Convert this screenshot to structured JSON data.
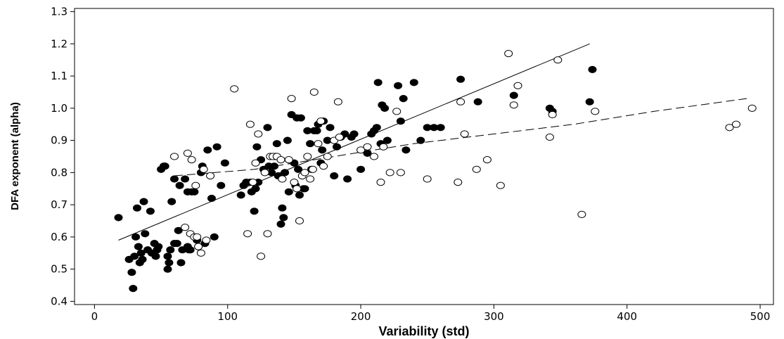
{
  "chart_data": {
    "type": "scatter",
    "title": "",
    "xlabel": "Variability (std)",
    "ylabel": "DFA exponent (alpha)",
    "xlim": [
      -15,
      510
    ],
    "ylim": [
      0.39,
      1.31
    ],
    "xticks": [
      0,
      100,
      200,
      300,
      400,
      500
    ],
    "yticks": [
      0.4,
      0.5,
      0.6,
      0.7,
      0.8,
      0.9,
      1.0,
      1.1,
      1.2,
      1.3
    ],
    "ytick_labels": [
      "0.4",
      "0.5",
      "0.6",
      "0.7",
      "0.8",
      "0.9",
      "1.0",
      "1.1",
      "1.2",
      "1.3"
    ],
    "grid": false,
    "legend": "none",
    "series": [
      {
        "marker": "filled-circle",
        "color": "#000000",
        "x": [
          18,
          26,
          28,
          29,
          30,
          31,
          32,
          33,
          34,
          35,
          36,
          37,
          38,
          40,
          42,
          43,
          45,
          46,
          47,
          48,
          50,
          52,
          53,
          55,
          55,
          56,
          57,
          58,
          60,
          60,
          62,
          63,
          64,
          65,
          66,
          68,
          70,
          70,
          71,
          72,
          73,
          75,
          77,
          78,
          80,
          81,
          83,
          85,
          88,
          90,
          92,
          95,
          98,
          110,
          112,
          114,
          117,
          118,
          120,
          121,
          122,
          123,
          125,
          127,
          130,
          131,
          133,
          135,
          136,
          137,
          138,
          140,
          141,
          142,
          143,
          145,
          146,
          148,
          150,
          151,
          152,
          153,
          154,
          155,
          157,
          158,
          160,
          162,
          163,
          165,
          167,
          168,
          170,
          171,
          172,
          175,
          177,
          180,
          182,
          185,
          188,
          190,
          193,
          195,
          200,
          205,
          208,
          210,
          212,
          213,
          215,
          216,
          218,
          220,
          228,
          230,
          232,
          234,
          240,
          245,
          250,
          255,
          260,
          275,
          288,
          315,
          342,
          344,
          372,
          374
        ],
        "y": [
          0.66,
          0.53,
          0.49,
          0.44,
          0.54,
          0.6,
          0.69,
          0.57,
          0.52,
          0.55,
          0.53,
          0.71,
          0.61,
          0.56,
          0.68,
          0.55,
          0.58,
          0.54,
          0.56,
          0.57,
          0.81,
          0.82,
          0.82,
          0.5,
          0.54,
          0.52,
          0.56,
          0.71,
          0.58,
          0.78,
          0.58,
          0.62,
          0.76,
          0.52,
          0.56,
          0.78,
          0.57,
          0.74,
          0.56,
          0.56,
          0.74,
          0.74,
          0.59,
          0.57,
          0.8,
          0.82,
          0.58,
          0.87,
          0.72,
          0.6,
          0.88,
          0.76,
          0.83,
          0.73,
          0.76,
          0.77,
          0.77,
          0.74,
          0.68,
          0.75,
          0.88,
          0.77,
          0.84,
          0.81,
          0.94,
          0.82,
          0.8,
          0.82,
          0.85,
          0.89,
          0.79,
          0.64,
          0.69,
          0.66,
          0.8,
          0.9,
          0.74,
          0.98,
          0.83,
          0.76,
          0.97,
          0.81,
          0.73,
          0.97,
          0.75,
          0.75,
          0.93,
          0.89,
          0.81,
          0.93,
          0.93,
          0.95,
          0.83,
          0.87,
          0.96,
          0.9,
          0.94,
          0.79,
          0.88,
          0.91,
          0.92,
          0.78,
          0.91,
          0.92,
          0.81,
          0.86,
          0.92,
          0.93,
          0.94,
          1.08,
          0.89,
          1.01,
          1.0,
          0.9,
          1.07,
          0.96,
          1.03,
          0.87,
          1.08,
          0.9,
          0.94,
          0.94,
          0.94,
          1.09,
          1.02,
          1.04,
          1.0,
          0.99,
          1.02,
          1.12
        ]
      },
      {
        "marker": "open-circle",
        "color": "#000000",
        "x": [
          60,
          68,
          70,
          72,
          73,
          75,
          76,
          77,
          78,
          80,
          82,
          84,
          87,
          105,
          115,
          117,
          119,
          121,
          123,
          125,
          128,
          130,
          132,
          134,
          137,
          140,
          141,
          146,
          148,
          150,
          152,
          154,
          156,
          158,
          160,
          162,
          164,
          165,
          168,
          170,
          172,
          175,
          180,
          183,
          184,
          200,
          205,
          210,
          215,
          217,
          222,
          227,
          230,
          250,
          273,
          275,
          278,
          287,
          295,
          305,
          311,
          315,
          318,
          342,
          344,
          348,
          366,
          376,
          477,
          482,
          494
        ],
        "y": [
          0.85,
          0.63,
          0.86,
          0.61,
          0.84,
          0.6,
          0.76,
          0.6,
          0.57,
          0.55,
          0.81,
          0.59,
          0.79,
          1.06,
          0.61,
          0.95,
          0.77,
          0.83,
          0.92,
          0.54,
          0.8,
          0.61,
          0.85,
          0.85,
          0.85,
          0.84,
          0.78,
          0.84,
          1.03,
          0.77,
          0.75,
          0.65,
          0.79,
          0.8,
          0.85,
          0.78,
          0.81,
          1.05,
          0.89,
          0.96,
          0.82,
          0.85,
          0.9,
          1.02,
          0.91,
          0.87,
          0.88,
          0.85,
          0.77,
          0.88,
          0.8,
          0.99,
          0.8,
          0.78,
          0.77,
          1.02,
          0.92,
          0.81,
          0.84,
          0.76,
          1.17,
          1.01,
          1.07,
          0.91,
          0.98,
          1.15,
          0.67,
          0.99,
          0.94,
          0.95,
          1.0
        ]
      }
    ],
    "fit_lines": [
      {
        "style": "solid",
        "x": [
          18,
          372
        ],
        "y": [
          0.59,
          1.2
        ]
      },
      {
        "style": "dashed",
        "x": [
          60,
          90,
          120,
          150,
          180,
          210,
          240,
          300,
          360,
          420,
          490
        ],
        "y": [
          0.79,
          0.8,
          0.81,
          0.83,
          0.85,
          0.87,
          0.89,
          0.92,
          0.95,
          0.99,
          1.03
        ]
      }
    ]
  }
}
